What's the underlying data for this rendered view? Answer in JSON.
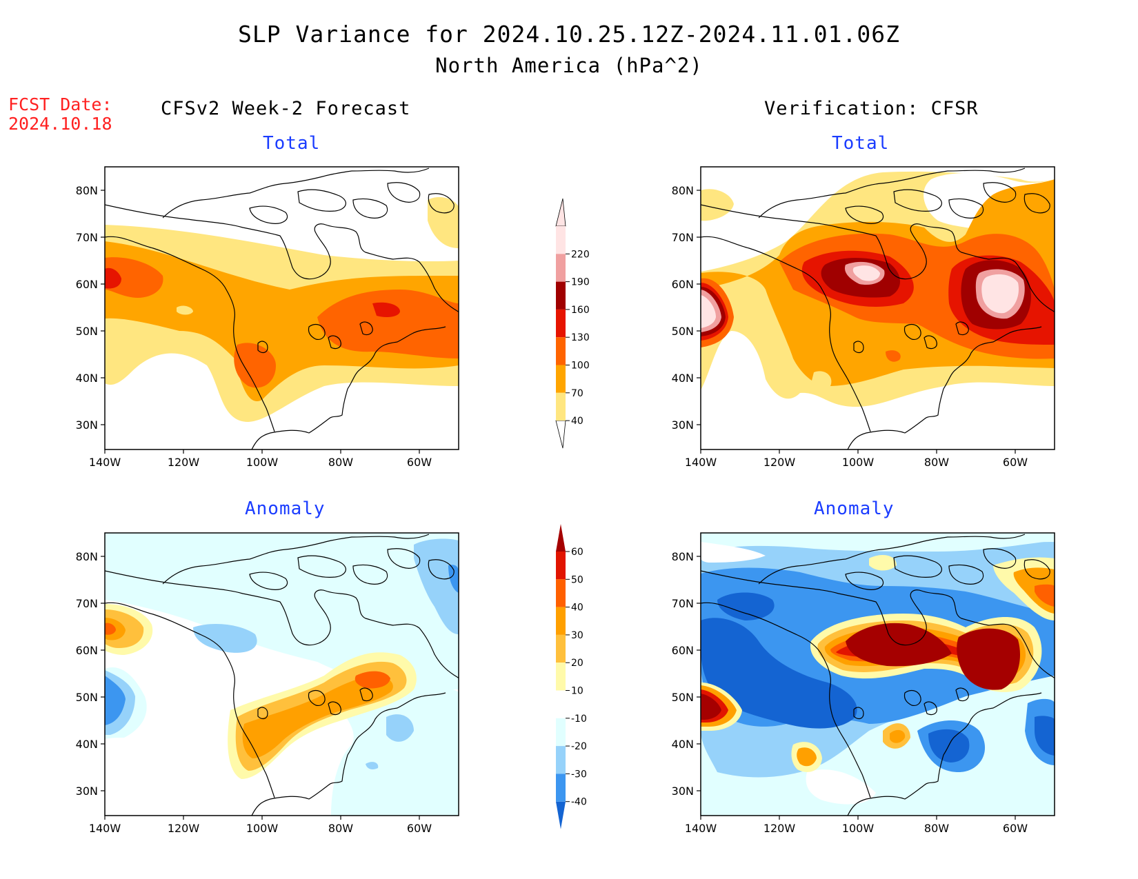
{
  "header": {
    "title": "SLP Variance for 2024.10.25.12Z-2024.11.01.06Z",
    "subtitle": "North America (hPa^2)",
    "fcst_label": "FCST Date:",
    "fcst_date": "2024.10.18"
  },
  "columns": {
    "left": "CFSv2 Week-2 Forecast",
    "right": "Verification: CFSR"
  },
  "panels": {
    "fc_total_title": "Total",
    "obs_total_title": "Total",
    "fc_anom_title": "Anomaly",
    "obs_anom_title": "Anomaly"
  },
  "axes": {
    "lat_ticks": [
      "80N",
      "70N",
      "60N",
      "50N",
      "40N",
      "30N"
    ],
    "lon_ticks": [
      "140W",
      "120W",
      "100W",
      "80W",
      "60W"
    ]
  },
  "total_colorbar": {
    "labels": [
      "40",
      "70",
      "100",
      "130",
      "160",
      "190",
      "220"
    ],
    "colors": [
      "#ffe680",
      "#ffa500",
      "#ff6400",
      "#e61400",
      "#a00000",
      "#f0a0a0",
      "#ffe4e4"
    ]
  },
  "anomaly_colorbar": {
    "labels": [
      "-40",
      "-30",
      "-20",
      "-10",
      "10",
      "20",
      "30",
      "40",
      "50",
      "60"
    ],
    "colors": [
      "#1464d2",
      "#3c96f0",
      "#96d2fa",
      "#e1ffff",
      "#ffffff",
      "#fffaaa",
      "#ffc03c",
      "#ffa000",
      "#ff6000",
      "#e11400",
      "#a50000"
    ]
  },
  "colors": {
    "title_text": "#000000",
    "fcst_text": "#ff2020",
    "panel_title_text": "#1a3cff"
  }
}
